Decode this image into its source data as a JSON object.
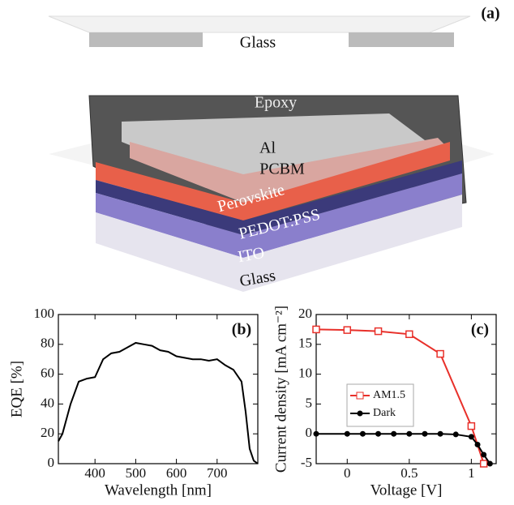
{
  "diagram": {
    "panel_label": "(a)",
    "labels": [
      "Glass",
      "Epoxy",
      "Al",
      "PCBM",
      "Perovskite",
      "PEDOT:PSS",
      "ITO",
      "Glass"
    ]
  },
  "chart_data": [
    {
      "type": "line",
      "panel_label": "(b)",
      "x_label": "Wavelength [nm]",
      "y_label": "EQE [%]",
      "color": "#000000",
      "x": [
        310,
        320,
        340,
        360,
        380,
        400,
        420,
        440,
        460,
        480,
        500,
        520,
        540,
        560,
        580,
        600,
        620,
        640,
        660,
        680,
        700,
        720,
        740,
        760,
        770,
        780,
        790,
        800
      ],
      "values": [
        15,
        20,
        40,
        55,
        57,
        58,
        70,
        74,
        75,
        78,
        81,
        80,
        79,
        76,
        75,
        72,
        71,
        70,
        70,
        69,
        70,
        66,
        63,
        55,
        35,
        10,
        2,
        0
      ],
      "xlim": [
        310,
        800
      ],
      "xticks": [
        400,
        500,
        600,
        700
      ],
      "ylim": [
        0,
        100
      ],
      "yticks": [
        0,
        20,
        40,
        60,
        80,
        100
      ]
    },
    {
      "type": "line",
      "panel_label": "(c)",
      "x_label": "Voltage [V]",
      "y_label": "Current density [mA cm⁻²]",
      "legend": "center left",
      "series": [
        {
          "name": "AM1.5",
          "color": "#e8302a",
          "marker": "square",
          "x": [
            -0.25,
            0,
            0.25,
            0.5,
            0.75,
            1.0,
            1.1
          ],
          "values": [
            17.5,
            17.4,
            17.2,
            16.7,
            13.4,
            1.3,
            -5
          ]
        },
        {
          "name": "Dark",
          "color": "#000000",
          "marker": "circle",
          "x": [
            -0.25,
            0,
            0.125,
            0.25,
            0.375,
            0.5,
            0.625,
            0.75,
            0.875,
            1.0,
            1.05,
            1.1,
            1.15
          ],
          "values": [
            0,
            0,
            0,
            0,
            0,
            0,
            0,
            0,
            -0.1,
            -0.5,
            -1.8,
            -3.5,
            -5
          ]
        }
      ],
      "xlim": [
        -0.25,
        1.2
      ],
      "xticks": [
        0,
        0.5,
        1
      ],
      "ylim": [
        -5,
        20
      ],
      "yticks": [
        -5,
        0,
        5,
        10,
        15,
        20
      ]
    }
  ]
}
